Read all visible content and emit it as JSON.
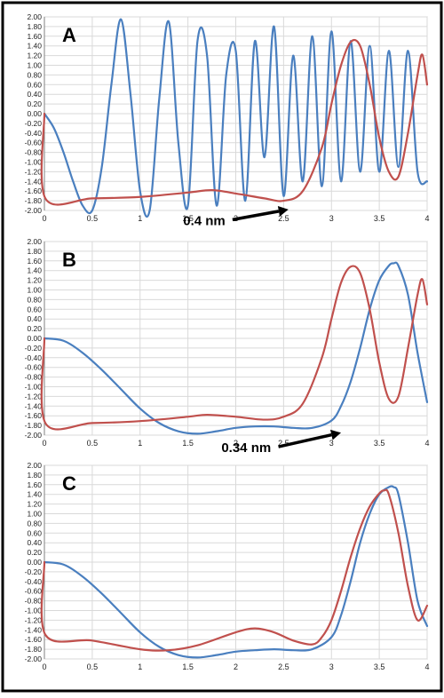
{
  "chart_data": [
    {
      "type": "line",
      "panel_label": "A",
      "xlim": [
        0,
        4
      ],
      "ylim": [
        -2.0,
        2.0
      ],
      "x_ticks": [
        "0",
        "0.5",
        "1",
        "1.5",
        "2",
        "2.5",
        "3",
        "3.5",
        "4"
      ],
      "y_ticks": [
        "2.00",
        "1.80",
        "1.60",
        "1.40",
        "1.20",
        "1.00",
        "0.80",
        "0.60",
        "0.40",
        "0.20",
        "0.00",
        "-0.20",
        "-0.40",
        "-0.60",
        "-0.80",
        "-1.00",
        "-1.20",
        "-1.40",
        "-1.60",
        "-1.80",
        "-2.00"
      ],
      "grid": true,
      "annotation": {
        "text": "0.4 nm",
        "points_to": [
          2.55,
          -1.98
        ],
        "label_at": [
          1.45,
          -2.3
        ]
      },
      "series": [
        {
          "color": "#4a7fbf",
          "x": [
            0,
            0.1,
            0.2,
            0.3,
            0.4,
            0.5,
            0.6,
            0.7,
            0.8,
            0.9,
            1.0,
            1.1,
            1.2,
            1.3,
            1.4,
            1.5,
            1.6,
            1.7,
            1.8,
            1.9,
            2.0,
            2.1,
            2.2,
            2.3,
            2.4,
            2.5,
            2.6,
            2.7,
            2.8,
            2.9,
            3.0,
            3.1,
            3.2,
            3.3,
            3.4,
            3.5,
            3.6,
            3.7,
            3.8,
            3.9,
            4.0
          ],
          "y": [
            0.0,
            -0.3,
            -0.8,
            -1.4,
            -1.9,
            -2.0,
            -1.1,
            0.6,
            1.95,
            0.4,
            -1.6,
            -2.0,
            0.3,
            1.9,
            -0.6,
            -1.9,
            1.5,
            1.2,
            -1.9,
            0.8,
            1.3,
            -1.8,
            1.5,
            -0.9,
            1.8,
            -1.7,
            1.2,
            -1.4,
            1.6,
            -1.5,
            1.7,
            -1.4,
            1.5,
            -1.2,
            1.4,
            -1.2,
            1.3,
            -1.1,
            1.3,
            -1.2,
            -1.4
          ]
        },
        {
          "color": "#c0504d",
          "x": [
            0,
            0.01,
            0.5,
            1.0,
            1.5,
            1.75,
            2.0,
            2.3,
            2.5,
            2.7,
            2.9,
            3.0,
            3.1,
            3.2,
            3.3,
            3.4,
            3.5,
            3.6,
            3.7,
            3.8,
            3.9,
            3.95,
            4.0
          ],
          "y": [
            0.0,
            -1.75,
            -1.75,
            -1.72,
            -1.63,
            -1.58,
            -1.65,
            -1.75,
            -1.8,
            -1.6,
            -0.7,
            0.2,
            1.0,
            1.48,
            1.4,
            0.6,
            -0.5,
            -1.2,
            -1.3,
            -0.4,
            0.8,
            1.22,
            0.6
          ]
        }
      ]
    },
    {
      "type": "line",
      "panel_label": "B",
      "xlim": [
        0,
        4
      ],
      "ylim": [
        -2.0,
        2.0
      ],
      "x_ticks": [
        "0",
        "0.5",
        "1",
        "1.5",
        "2",
        "2.5",
        "3",
        "3.5",
        "4"
      ],
      "y_ticks": [
        "2.00",
        "1.80",
        "1.60",
        "1.40",
        "1.20",
        "1.00",
        "0.80",
        "0.60",
        "0.40",
        "0.20",
        "0.00",
        "-0.20",
        "-0.40",
        "-0.60",
        "-0.80",
        "-1.00",
        "-1.20",
        "-1.40",
        "-1.60",
        "-1.80",
        "-2.00"
      ],
      "grid": true,
      "annotation": {
        "text": "0.34 nm",
        "points_to": [
          3.1,
          -1.95
        ],
        "label_at": [
          1.85,
          -2.35
        ]
      },
      "series": [
        {
          "color": "#4a7fbf",
          "x": [
            0,
            0.2,
            0.4,
            0.6,
            0.8,
            1.0,
            1.2,
            1.4,
            1.6,
            1.8,
            2.0,
            2.2,
            2.4,
            2.6,
            2.8,
            3.0,
            3.1,
            3.2,
            3.3,
            3.4,
            3.5,
            3.6,
            3.65,
            3.7,
            3.8,
            3.9,
            4.0
          ],
          "y": [
            0.0,
            -0.05,
            -0.3,
            -0.65,
            -1.05,
            -1.45,
            -1.75,
            -1.92,
            -1.97,
            -1.92,
            -1.85,
            -1.82,
            -1.82,
            -1.85,
            -1.85,
            -1.7,
            -1.4,
            -0.9,
            -0.2,
            0.6,
            1.2,
            1.5,
            1.55,
            1.5,
            0.9,
            -0.3,
            -1.32
          ]
        },
        {
          "color": "#c0504d",
          "x": [
            0,
            0.01,
            0.5,
            1.0,
            1.5,
            1.7,
            2.0,
            2.3,
            2.5,
            2.7,
            2.9,
            3.0,
            3.1,
            3.2,
            3.3,
            3.4,
            3.5,
            3.6,
            3.7,
            3.8,
            3.9,
            3.95,
            4.0
          ],
          "y": [
            0.0,
            -1.75,
            -1.75,
            -1.71,
            -1.62,
            -1.58,
            -1.62,
            -1.68,
            -1.62,
            -1.35,
            -0.4,
            0.4,
            1.15,
            1.48,
            1.35,
            0.6,
            -0.5,
            -1.25,
            -1.2,
            -0.2,
            0.9,
            1.22,
            0.7
          ]
        }
      ]
    },
    {
      "type": "line",
      "panel_label": "C",
      "xlim": [
        0,
        4
      ],
      "ylim": [
        -2.0,
        2.0
      ],
      "x_ticks": [
        "0",
        "0.5",
        "1",
        "1.5",
        "2",
        "2.5",
        "3",
        "3.5",
        "4"
      ],
      "y_ticks": [
        "2.00",
        "1.80",
        "1.60",
        "1.40",
        "1.20",
        "1.00",
        "0.80",
        "0.60",
        "0.40",
        "0.20",
        "0.00",
        "-0.20",
        "-0.40",
        "-0.60",
        "-0.80",
        "-1.00",
        "-1.20",
        "-1.40",
        "-1.60",
        "-1.80",
        "-2.00"
      ],
      "grid": true,
      "series": [
        {
          "color": "#4a7fbf",
          "x": [
            0,
            0.2,
            0.4,
            0.6,
            0.8,
            1.0,
            1.2,
            1.4,
            1.6,
            1.8,
            2.0,
            2.2,
            2.4,
            2.6,
            2.8,
            3.0,
            3.1,
            3.2,
            3.3,
            3.4,
            3.5,
            3.6,
            3.65,
            3.7,
            3.8,
            3.9,
            4.0
          ],
          "y": [
            0.0,
            -0.05,
            -0.3,
            -0.65,
            -1.05,
            -1.45,
            -1.75,
            -1.92,
            -1.97,
            -1.92,
            -1.85,
            -1.82,
            -1.8,
            -1.82,
            -1.8,
            -1.55,
            -1.1,
            -0.4,
            0.4,
            1.0,
            1.4,
            1.55,
            1.55,
            1.4,
            0.4,
            -0.8,
            -1.32
          ]
        },
        {
          "color": "#c0504d",
          "x": [
            0,
            0.01,
            0.5,
            1.0,
            1.3,
            1.6,
            2.0,
            2.2,
            2.4,
            2.6,
            2.8,
            2.9,
            3.0,
            3.1,
            3.2,
            3.3,
            3.4,
            3.5,
            3.55,
            3.6,
            3.7,
            3.8,
            3.9,
            4.0
          ],
          "y": [
            0.0,
            -1.5,
            -1.62,
            -1.8,
            -1.82,
            -1.72,
            -1.45,
            -1.37,
            -1.45,
            -1.62,
            -1.7,
            -1.55,
            -1.2,
            -0.6,
            0.1,
            0.7,
            1.15,
            1.42,
            1.48,
            1.4,
            0.6,
            -0.5,
            -1.2,
            -0.9
          ]
        }
      ]
    }
  ]
}
